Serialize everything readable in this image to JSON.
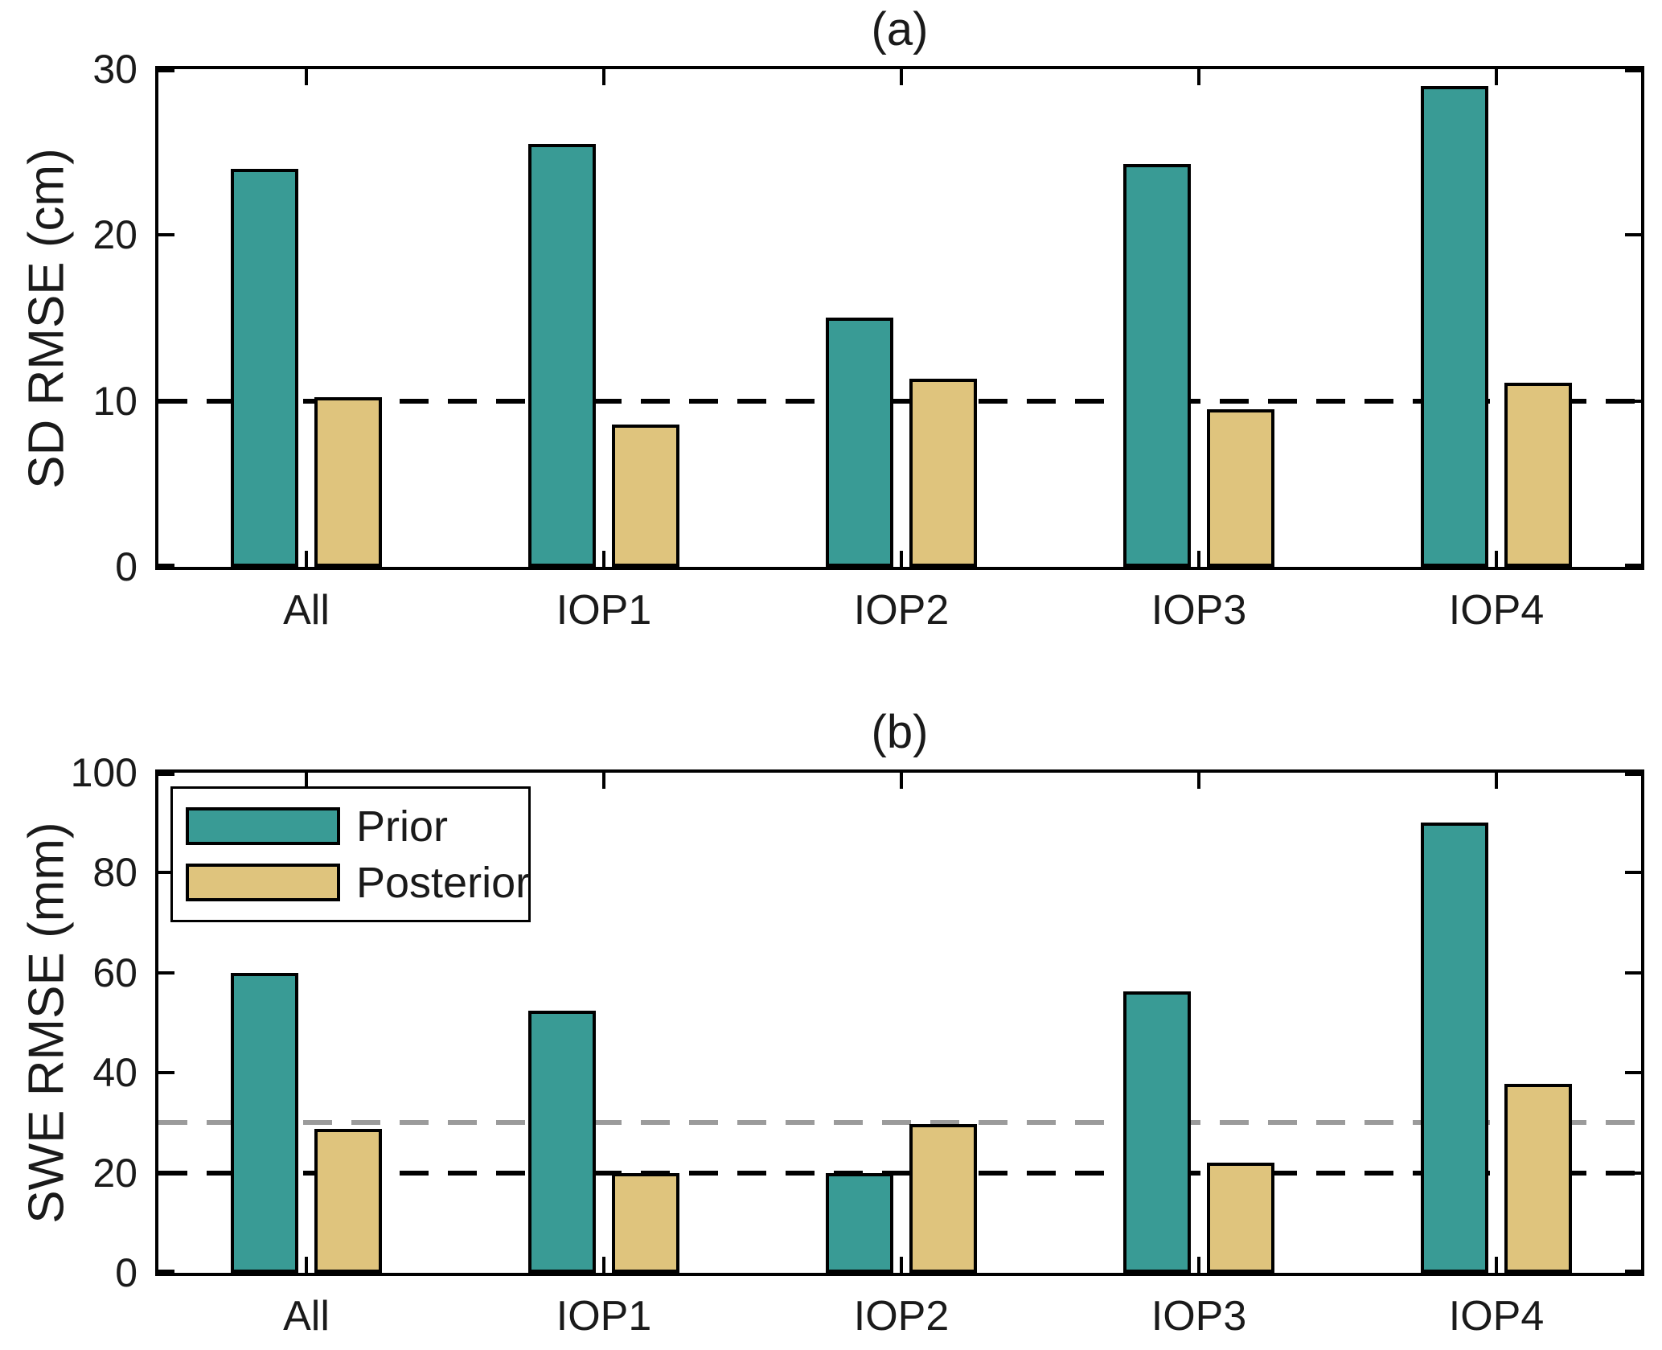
{
  "figure": {
    "background": "#ffffff",
    "axis_color": "#000000",
    "text_color": "#1a1a1a",
    "prior_color": "#399B95",
    "posterior_color": "#DFC47D",
    "gray_dash_color": "#9B9B9B",
    "black_dash_color": "#000000"
  },
  "legend": {
    "items": [
      {
        "label": "Prior",
        "color": "#399B95"
      },
      {
        "label": "Posterior",
        "color": "#DFC47D"
      }
    ],
    "position": "top-left-of-panel-b"
  },
  "chart_data": [
    {
      "type": "bar",
      "panel": "a",
      "title": "(a)",
      "xlabel": "",
      "ylabel": "SD RMSE (cm)",
      "categories": [
        "All",
        "IOP1",
        "IOP2",
        "IOP3",
        "IOP4"
      ],
      "series": [
        {
          "name": "Prior",
          "color": "#399B95",
          "values": [
            24.0,
            25.5,
            15.0,
            24.3,
            29.0
          ]
        },
        {
          "name": "Posterior",
          "color": "#DFC47D",
          "values": [
            10.25,
            8.6,
            11.35,
            9.5,
            11.1
          ]
        }
      ],
      "ylim": [
        0,
        30
      ],
      "yticks": [
        0,
        10,
        20,
        30
      ],
      "reference_lines": [
        {
          "y": 10,
          "color": "#000000",
          "style": "dashed",
          "meaning": "reference"
        }
      ],
      "grid": false,
      "legend_position": "none"
    },
    {
      "type": "bar",
      "panel": "b",
      "title": "(b)",
      "xlabel": "",
      "ylabel": "SWE RMSE (mm)",
      "categories": [
        "All",
        "IOP1",
        "IOP2",
        "IOP3",
        "IOP4"
      ],
      "series": [
        {
          "name": "Prior",
          "color": "#399B95",
          "values": [
            60.0,
            52.4,
            20.0,
            56.2,
            90.0
          ]
        },
        {
          "name": "Posterior",
          "color": "#DFC47D",
          "values": [
            28.7,
            20.0,
            29.8,
            22.0,
            37.8
          ]
        }
      ],
      "ylim": [
        0,
        100
      ],
      "yticks": [
        0,
        20,
        40,
        60,
        80,
        100
      ],
      "reference_lines": [
        {
          "y": 30,
          "color": "#9B9B9B",
          "style": "dashed",
          "meaning": "reference"
        },
        {
          "y": 20,
          "color": "#000000",
          "style": "dashed",
          "meaning": "reference"
        }
      ],
      "grid": false,
      "legend_position": "top-left"
    }
  ]
}
